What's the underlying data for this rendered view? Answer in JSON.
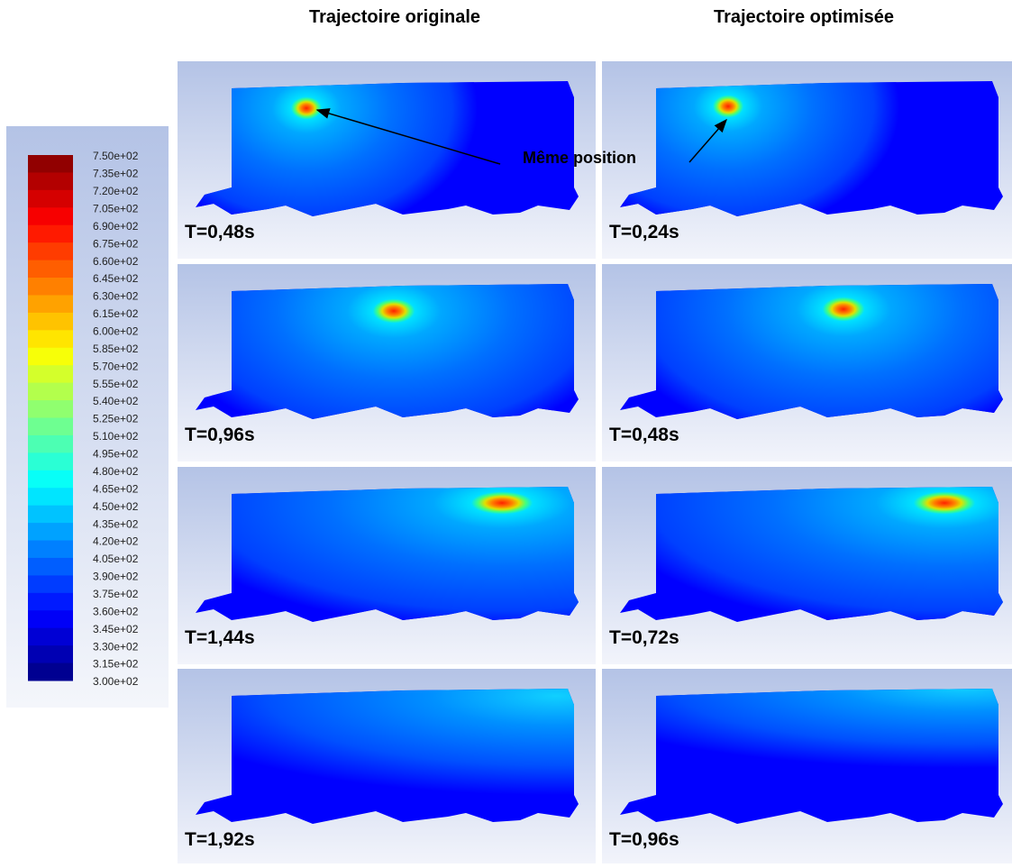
{
  "column_titles": [
    "Trajectoire originale",
    "Trajectoire optimisée"
  ],
  "legend": {
    "labels": [
      "7.50e+02",
      "7.35e+02",
      "7.20e+02",
      "7.05e+02",
      "6.90e+02",
      "6.75e+02",
      "6.60e+02",
      "6.45e+02",
      "6.30e+02",
      "6.15e+02",
      "6.00e+02",
      "5.85e+02",
      "5.70e+02",
      "5.55e+02",
      "5.40e+02",
      "5.25e+02",
      "5.10e+02",
      "4.95e+02",
      "4.80e+02",
      "4.65e+02",
      "4.50e+02",
      "4.35e+02",
      "4.20e+02",
      "4.05e+02",
      "3.90e+02",
      "3.75e+02",
      "3.60e+02",
      "3.45e+02",
      "3.30e+02",
      "3.15e+02",
      "3.00e+02"
    ]
  },
  "rows": [
    [
      "T=0,48s",
      "T=0,24s"
    ],
    [
      "T=0,96s",
      "T=0,48s"
    ],
    [
      "T=1,44s",
      "T=0,72s"
    ],
    [
      "T=1,92s",
      "T=0,96s"
    ]
  ],
  "annotation": "Même position"
}
